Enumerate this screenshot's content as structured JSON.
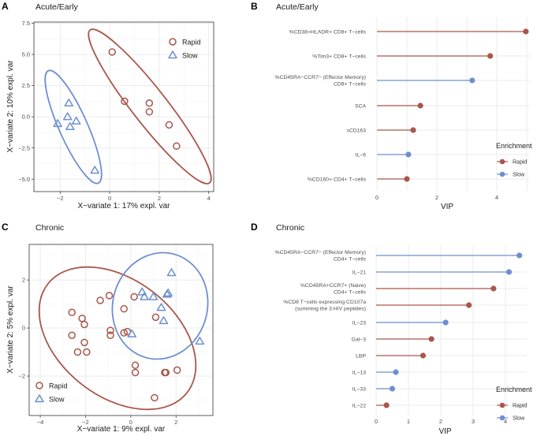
{
  "colors": {
    "rapid": "#a9564b",
    "slow": "#6e8fcf"
  },
  "chart_data": [
    {
      "panel": "A",
      "type": "scatter",
      "title": "Acute/Early",
      "xlabel": "X−variate 1: 17% expl. var",
      "ylabel": "X−variate 2: 10% expl. var",
      "xlim": [
        -3.06,
        4.2
      ],
      "ylim": [
        -6.0,
        7.6
      ],
      "xticks": [
        -2,
        0,
        2,
        4
      ],
      "xtick_labels": [
        "−2",
        "0",
        "2",
        "4"
      ],
      "yticks": [
        -5,
        -2.5,
        0,
        2.5,
        5,
        7.5
      ],
      "ytick_labels": [
        "−5.0",
        "−2.5",
        "0.0",
        "2.5",
        "5.0",
        "7.5"
      ],
      "legend": {
        "position": "top-right",
        "entries": [
          "Rapid",
          "Slow"
        ]
      },
      "series": [
        {
          "name": "Rapid",
          "marker": "circle",
          "points": [
            [
              0.1,
              5.2
            ],
            [
              0.6,
              1.25
            ],
            [
              1.6,
              1.1
            ],
            [
              1.6,
              0.4
            ],
            [
              2.4,
              -0.65
            ],
            [
              2.7,
              -2.35
            ]
          ]
        },
        {
          "name": "Slow",
          "marker": "triangle",
          "points": [
            [
              -1.65,
              1.1
            ],
            [
              -1.7,
              0.0
            ],
            [
              -2.1,
              -0.55
            ],
            [
              -1.35,
              -0.35
            ],
            [
              -1.6,
              -0.8
            ],
            [
              -0.6,
              -4.3
            ]
          ]
        }
      ]
    },
    {
      "panel": "B",
      "type": "lollipop",
      "title": "Acute/Early",
      "xlabel": "VIP",
      "xlim": [
        0,
        5.1
      ],
      "xticks": [
        0,
        2,
        4
      ],
      "xtick_labels": [
        "0",
        "2",
        "4"
      ],
      "legend": {
        "title": "Enrichment",
        "position": "right",
        "entries": [
          "Rapid",
          "Slow"
        ]
      },
      "items": [
        {
          "label": [
            "%CD38+HLADR+ CD8+ T−cells"
          ],
          "value": 4.97,
          "group": "Rapid"
        },
        {
          "label": [
            "%Tim3+ CD8+ T−cells"
          ],
          "value": 3.78,
          "group": "Rapid"
        },
        {
          "label": [
            "%CD45RA−CCR7− (Effector Memory)",
            "CD8+ T−cells"
          ],
          "value": 3.18,
          "group": "Slow"
        },
        {
          "label": [
            "SCA"
          ],
          "value": 1.45,
          "group": "Rapid"
        },
        {
          "label": [
            "sCD163"
          ],
          "value": 1.21,
          "group": "Rapid"
        },
        {
          "label": [
            "IL−6"
          ],
          "value": 1.05,
          "group": "Slow"
        },
        {
          "label": [
            "%CD160+ CD4+ T−cells"
          ],
          "value": 1.0,
          "group": "Rapid"
        }
      ]
    },
    {
      "panel": "C",
      "type": "scatter",
      "title": "Chronic",
      "xlabel": "X−variate 1: 9% expl. var",
      "ylabel": "X−variate 2: 5% expl. var",
      "xlim": [
        -4.49,
        3.63
      ],
      "ylim": [
        -3.64,
        3.48
      ],
      "xticks": [
        -4,
        -2,
        0,
        2
      ],
      "xtick_labels": [
        "−4",
        "−2",
        "0",
        "2"
      ],
      "yticks": [
        -2,
        0,
        2
      ],
      "ytick_labels": [
        "−2",
        "0",
        "2"
      ],
      "legend": {
        "position": "bottom-left",
        "entries": [
          "Rapid",
          "Slow"
        ]
      },
      "series": [
        {
          "name": "Rapid",
          "marker": "circle",
          "points": [
            [
              -2.6,
              0.65
            ],
            [
              -2.15,
              0.4
            ],
            [
              -2.05,
              0.15
            ],
            [
              -2.6,
              -0.3
            ],
            [
              -2.05,
              -0.6
            ],
            [
              -2.35,
              -1.0
            ],
            [
              -1.95,
              -1.0
            ],
            [
              -1.35,
              1.15
            ],
            [
              -0.95,
              1.35
            ],
            [
              -0.9,
              -0.1
            ],
            [
              -0.9,
              -0.3
            ],
            [
              -0.3,
              0.8
            ],
            [
              -0.3,
              -0.2
            ],
            [
              -0.15,
              -0.15
            ],
            [
              0.15,
              1.3
            ],
            [
              1.1,
              0.45
            ],
            [
              0.2,
              -1.55
            ],
            [
              0.2,
              -1.85
            ],
            [
              1.5,
              -1.85
            ],
            [
              1.55,
              -1.85
            ],
            [
              2.05,
              -1.75
            ],
            [
              1.05,
              -2.9
            ]
          ]
        },
        {
          "name": "Slow",
          "marker": "triangle",
          "points": [
            [
              0.5,
              1.5
            ],
            [
              0.6,
              1.3
            ],
            [
              1.0,
              1.3
            ],
            [
              1.65,
              1.45
            ],
            [
              1.6,
              1.4
            ],
            [
              1.8,
              2.3
            ],
            [
              1.35,
              0.85
            ],
            [
              1.45,
              0.3
            ],
            [
              0.05,
              -0.25
            ],
            [
              3.05,
              -0.55
            ]
          ]
        }
      ]
    },
    {
      "panel": "D",
      "type": "lollipop",
      "title": "Chronic",
      "xlabel": "VIP",
      "xlim": [
        0,
        4.65
      ],
      "xticks": [
        0,
        1,
        2,
        3,
        4
      ],
      "xtick_labels": [
        "0",
        "1",
        "2",
        "3",
        "4"
      ],
      "legend": {
        "title": "Enrichment",
        "position": "right",
        "entries": [
          "Rapid",
          "Slow"
        ]
      },
      "items": [
        {
          "label": [
            "%CD45RA−CCR7− (Effector Memory)",
            "CD4+ T−cells"
          ],
          "value": 4.43,
          "group": "Slow"
        },
        {
          "label": [
            "IL−21"
          ],
          "value": 4.11,
          "group": "Slow"
        },
        {
          "label": [
            "%CD45RA+CCR7+ (Naive)",
            "CD4+ T−cells"
          ],
          "value": 3.63,
          "group": "Rapid"
        },
        {
          "label": [
            "%CD8 T−cells expressing CD107a",
            "(summing the 3 HIV peptides)"
          ],
          "value": 2.87,
          "group": "Rapid"
        },
        {
          "label": [
            "IL−23"
          ],
          "value": 2.15,
          "group": "Slow"
        },
        {
          "label": [
            "Gal−3"
          ],
          "value": 1.71,
          "group": "Rapid"
        },
        {
          "label": [
            "LBP"
          ],
          "value": 1.45,
          "group": "Rapid"
        },
        {
          "label": [
            "IL−13"
          ],
          "value": 0.61,
          "group": "Slow"
        },
        {
          "label": [
            "IL−33"
          ],
          "value": 0.5,
          "group": "Slow"
        },
        {
          "label": [
            "IL−22"
          ],
          "value": 0.32,
          "group": "Rapid"
        }
      ]
    }
  ]
}
